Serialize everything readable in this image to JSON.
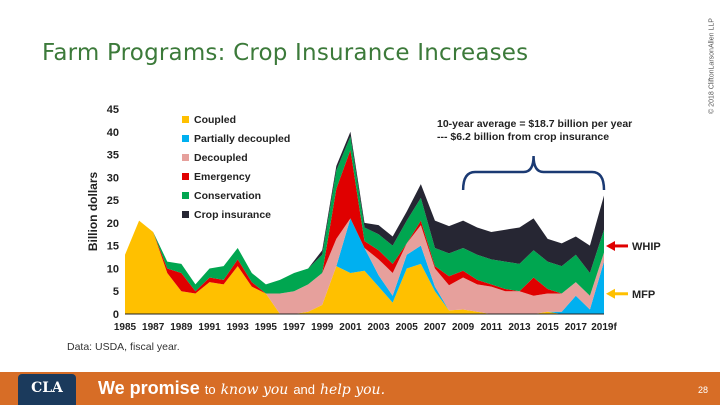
{
  "page": {
    "title": "Farm Programs: Crop Insurance Increases",
    "copyright": "© 2018 CliftonLarsonAllen LLP",
    "page_number": "28",
    "source": "Data: USDA, fiscal year.",
    "logo": "CLA"
  },
  "footer": {
    "bold": "We promise",
    "to1": "to",
    "know": "know you",
    "and": "and",
    "help": "help you.",
    "bg_color": "#d76d26"
  },
  "chart_data": {
    "type": "area",
    "stacked": true,
    "title": "",
    "xlabel": "",
    "ylabel": "Billion dollars",
    "ylim": [
      0,
      45
    ],
    "yticks": [
      0,
      5,
      10,
      15,
      20,
      25,
      30,
      35,
      40,
      45
    ],
    "x": [
      1985,
      1986,
      1987,
      1988,
      1989,
      1990,
      1991,
      1992,
      1993,
      1994,
      1995,
      1996,
      1997,
      1998,
      1999,
      2000,
      2001,
      2002,
      2003,
      2004,
      2005,
      2006,
      2007,
      2008,
      2009,
      2010,
      2011,
      2012,
      2013,
      2014,
      2015,
      2016,
      2017,
      2018,
      2019
    ],
    "xtick_labels": [
      "1985",
      "1987",
      "1989",
      "1991",
      "1993",
      "1995",
      "1997",
      "1999",
      "2001",
      "2003",
      "2005",
      "2007",
      "2009",
      "2011",
      "2013",
      "2015",
      "2017",
      "2019f"
    ],
    "legend_position": "top-left",
    "series": [
      {
        "name": "Coupled",
        "color": "#ffc000",
        "values": [
          13,
          20.5,
          18,
          9,
          5,
          4.5,
          7,
          6.5,
          10.5,
          6,
          4.5,
          0,
          0,
          0.5,
          2,
          10.5,
          9,
          9.5,
          6,
          2.5,
          10,
          11,
          5,
          0.8,
          1,
          0.5,
          0,
          0,
          0,
          0,
          0.5,
          0,
          0,
          0,
          0
        ]
      },
      {
        "name": "Partially decoupled",
        "color": "#00b0f0",
        "values": [
          0,
          0,
          0,
          0,
          0,
          0,
          0,
          0,
          0,
          0,
          0,
          0,
          0,
          0,
          0,
          0,
          12,
          5,
          2.5,
          1.5,
          3,
          4,
          1,
          0,
          0,
          0,
          0,
          0,
          0,
          0,
          0,
          0.5,
          4,
          1,
          11.5
        ]
      },
      {
        "name": "Decoupled",
        "color": "#e6a09c",
        "values": [
          0,
          0,
          0,
          0,
          0,
          0,
          0,
          0,
          0,
          0,
          0,
          4.5,
          5,
          6,
          7,
          6,
          0,
          0,
          3.5,
          5,
          2.5,
          4.5,
          4,
          5.5,
          7,
          6,
          6,
          5,
          5,
          4,
          4,
          4,
          3,
          3,
          2
        ]
      },
      {
        "name": "Emergency",
        "color": "#e00000",
        "values": [
          0,
          0,
          0,
          1,
          4,
          0.5,
          1,
          1,
          1.5,
          1,
          0,
          0,
          0,
          0,
          0,
          11,
          15,
          1.5,
          2,
          2,
          0,
          1,
          0.5,
          2,
          1.5,
          1,
          0.5,
          0.5,
          0,
          4,
          1,
          0,
          0,
          0,
          0
        ]
      },
      {
        "name": "Conservation",
        "color": "#00a650",
        "values": [
          0,
          0,
          0,
          1.5,
          2,
          1.5,
          2,
          3,
          2.5,
          2,
          2,
          3,
          4,
          3.5,
          4,
          4,
          3,
          3,
          3.5,
          4,
          5,
          5,
          4,
          5,
          5,
          5.5,
          5.5,
          6,
          6,
          6,
          6,
          6,
          6,
          5,
          5
        ]
      },
      {
        "name": "Crop insurance",
        "color": "#262633",
        "values": [
          0,
          0,
          0,
          0,
          0,
          0,
          0,
          0,
          0,
          0,
          0,
          0,
          0,
          0,
          1,
          1,
          1,
          1,
          2,
          2,
          2,
          3,
          6,
          6,
          6,
          6,
          6,
          7,
          8,
          7,
          5,
          5,
          4,
          6,
          7.5
        ]
      }
    ],
    "annotations": [
      {
        "text": "10-year average = $18.7 billion per year",
        "kind": "header"
      },
      {
        "text": "--- $6.2 billion from crop insurance",
        "kind": "header"
      },
      {
        "text": "WHIP",
        "kind": "arrow-label",
        "color": "#e00000"
      },
      {
        "text": "MFP",
        "kind": "arrow-label",
        "color": "#ffc000"
      }
    ]
  }
}
